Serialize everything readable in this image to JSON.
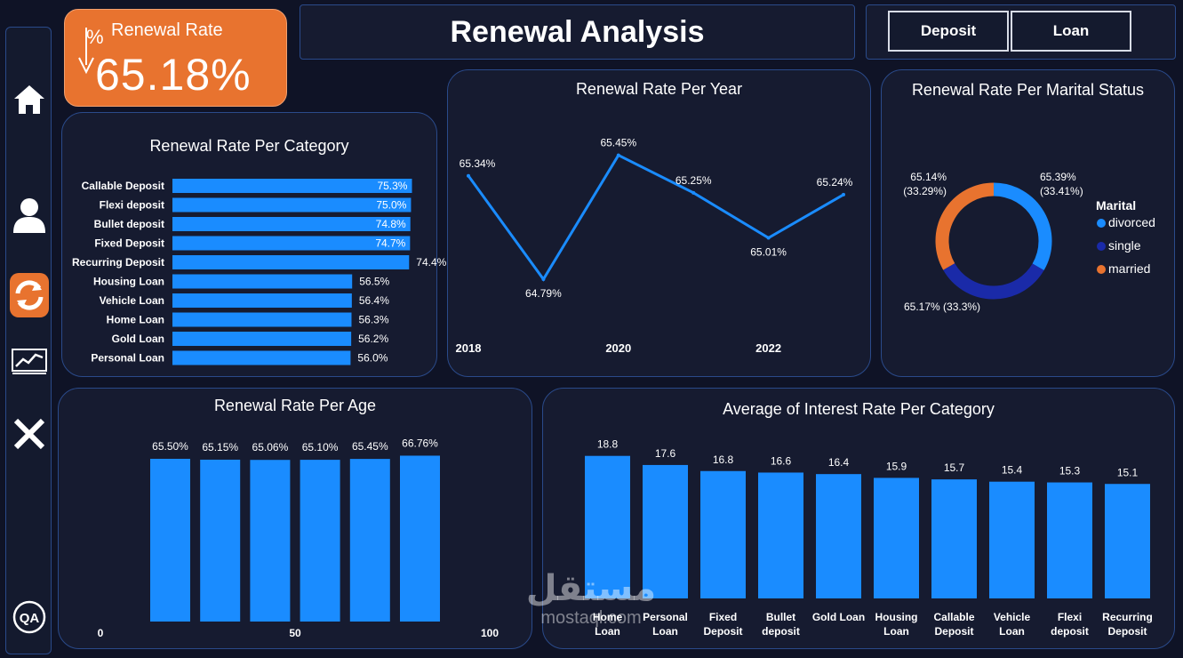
{
  "colors": {
    "background": "#0f1326",
    "panel": "#161b30",
    "border": "#2a4a8a",
    "accent_orange": "#e8732f",
    "bar_blue": "#1a8cff",
    "line_blue": "#1a8cff",
    "donut_divorced": "#1a8cff",
    "donut_single": "#1a2aa8",
    "donut_married": "#e8732f"
  },
  "sidebar": {
    "items": [
      {
        "icon": "home-icon",
        "label": "Home"
      },
      {
        "icon": "user-icon",
        "label": "User"
      },
      {
        "icon": "refresh-icon",
        "label": "Renewal",
        "active": true
      },
      {
        "icon": "line-chart-icon",
        "label": "Trends"
      },
      {
        "icon": "close-icon",
        "label": "Close"
      },
      {
        "icon": "qa-icon",
        "label": "Q&A"
      }
    ],
    "qa_text": "QA"
  },
  "kpi": {
    "label": "Renewal Rate",
    "value": "65.18%",
    "icon": "percent-down-arrow-icon"
  },
  "header": {
    "title": "Renewal Analysis"
  },
  "slicer": {
    "buttons": [
      "Deposit",
      "Loan"
    ]
  },
  "chart_data": [
    {
      "id": "category",
      "type": "bar",
      "orientation": "horizontal",
      "title": "Renewal Rate Per Category",
      "categories": [
        "Callable Deposit",
        "Flexi deposit",
        "Bullet deposit",
        "Fixed Deposit",
        "Recurring Deposit",
        "Housing Loan",
        "Vehicle Loan",
        "Home Loan",
        "Gold Loan",
        "Personal Loan"
      ],
      "values": [
        75.3,
        75.0,
        74.8,
        74.7,
        74.4,
        56.5,
        56.4,
        56.3,
        56.2,
        56.0
      ],
      "labels": [
        "75.3%",
        "75.0%",
        "74.8%",
        "74.7%",
        "74.4%",
        "56.5%",
        "56.4%",
        "56.3%",
        "56.2%",
        "56.0%"
      ],
      "xlim": [
        0,
        76
      ]
    },
    {
      "id": "year",
      "type": "line",
      "title": "Renewal Rate Per Year",
      "x": [
        2018,
        2019,
        2020,
        2021,
        2022,
        2023
      ],
      "values": [
        65.34,
        64.79,
        65.45,
        65.25,
        65.01,
        65.24
      ],
      "labels": [
        "65.34%",
        "64.79%",
        "65.45%",
        "65.25%",
        "65.01%",
        "65.24%"
      ],
      "xticks": [
        "2018",
        "2020",
        "2022"
      ],
      "ylim": [
        64.7,
        65.5
      ]
    },
    {
      "id": "marital",
      "type": "pie",
      "title": "Renewal Rate Per Marital Status",
      "legend_title": "Marital",
      "categories": [
        "divorced",
        "single",
        "married"
      ],
      "values": [
        33.41,
        33.3,
        33.29
      ],
      "labels": [
        "65.39%",
        "65.17%",
        "65.14%"
      ],
      "percent_labels": [
        "(33.41%)",
        "(33.3%)",
        "(33.29%)"
      ],
      "legend_position": "right"
    },
    {
      "id": "age",
      "type": "bar",
      "title": "Renewal Rate Per Age",
      "values": [
        65.5,
        65.15,
        65.06,
        65.1,
        65.45,
        66.76
      ],
      "labels": [
        "65.50%",
        "65.15%",
        "65.06%",
        "65.10%",
        "65.45%",
        "66.76%"
      ],
      "xticks": [
        "0",
        "50",
        "100"
      ],
      "ylim": [
        0,
        68
      ]
    },
    {
      "id": "interest",
      "type": "bar",
      "title": "Average of Interest Rate Per Category",
      "categories": [
        "Home Loan",
        "Personal Loan",
        "Fixed Deposit",
        "Bullet deposit",
        "Gold Loan",
        "Housing Loan",
        "Callable Deposit",
        "Vehicle Loan",
        "Flexi deposit",
        "Recurring Deposit"
      ],
      "values": [
        18.8,
        17.6,
        16.8,
        16.6,
        16.4,
        15.9,
        15.7,
        15.4,
        15.3,
        15.1
      ],
      "labels": [
        "18.8",
        "17.6",
        "16.8",
        "16.6",
        "16.4",
        "15.9",
        "15.7",
        "15.4",
        "15.3",
        "15.1"
      ],
      "ylim": [
        0,
        19
      ]
    }
  ],
  "watermark": {
    "arabic": "مستقل",
    "latin": "mostaql.com"
  }
}
